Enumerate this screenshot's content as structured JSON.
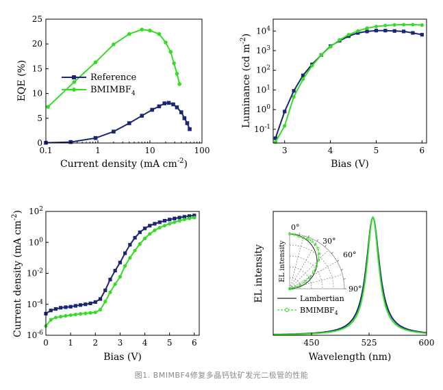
{
  "caption": "图1. BMIMBF4修复多晶钙钛矿发光二极管的性能",
  "colors": {
    "reference": "#1a2575",
    "bmimbf4": "#33dd22"
  },
  "chart_data": [
    {
      "type": "line",
      "xlabel_main": "Current density (mA cm",
      "xlabel_sup": "-2",
      "xlabel_end": ")",
      "ylabel": "EQE (%)",
      "xscale": "log",
      "xlim": [
        0.1,
        100
      ],
      "ylim": [
        0,
        25
      ],
      "xticks": [
        0.1,
        1,
        10,
        100
      ],
      "xtick_labels": [
        "0.1",
        "1",
        "10",
        "100"
      ],
      "yticks": [
        0,
        5,
        10,
        15,
        20,
        25
      ],
      "ytick_labels": [
        "0",
        "5",
        "10",
        "15",
        "20",
        "25"
      ],
      "legend": "center-left",
      "series": [
        {
          "name": "Reference",
          "sub": "",
          "marker": "square",
          "color": "#1a2575",
          "x": [
            0.1,
            0.3,
            0.9,
            2,
            4,
            7,
            11,
            15,
            19,
            23,
            28,
            33,
            40,
            46,
            52,
            58
          ],
          "y": [
            0.05,
            0.2,
            1.0,
            2.3,
            4.0,
            5.5,
            6.7,
            7.4,
            8.0,
            8.1,
            7.8,
            7.2,
            6.2,
            5.0,
            4.0,
            2.8
          ]
        },
        {
          "name": "BMIMBF",
          "sub": "4",
          "marker": "circle",
          "color": "#33dd22",
          "x": [
            0.11,
            0.35,
            0.9,
            2,
            4,
            7,
            10,
            15,
            20,
            25,
            29,
            33,
            37
          ],
          "y": [
            7.3,
            12.3,
            16.3,
            19.9,
            22.0,
            22.9,
            22.7,
            22.0,
            20.3,
            18.4,
            16.1,
            14.0,
            11.9
          ]
        }
      ]
    },
    {
      "type": "line",
      "xlabel": "Bias (V)",
      "ylabel_main": "Luminance (cd m",
      "ylabel_sup": "-2",
      "ylabel_end": ")",
      "yscale": "log",
      "xlim": [
        2.75,
        6.1
      ],
      "ylim": [
        0.02,
        40000
      ],
      "xticks": [
        3,
        4,
        5,
        6
      ],
      "xtick_labels": [
        "3",
        "4",
        "5",
        "6"
      ],
      "yticks": [
        0.1,
        1,
        10,
        100,
        1000,
        10000
      ],
      "ytick_base": "10",
      "ytick_exps": [
        "-1",
        "0",
        "1",
        "2",
        "3",
        "4"
      ],
      "series": [
        {
          "name": "Reference",
          "marker": "square",
          "color": "#1a2575",
          "x": [
            2.8,
            3.0,
            3.2,
            3.4,
            3.6,
            3.8,
            4.0,
            4.2,
            4.4,
            4.6,
            4.8,
            5.0,
            5.2,
            5.4,
            5.6,
            5.8,
            6.0
          ],
          "y": [
            0.035,
            0.8,
            9,
            55,
            200,
            600,
            1700,
            3200,
            5500,
            8000,
            9500,
            10500,
            10500,
            10000,
            9500,
            8000,
            6500
          ]
        },
        {
          "name": "BMIMBF4",
          "marker": "circle",
          "color": "#33dd22",
          "x": [
            2.8,
            3.0,
            3.2,
            3.4,
            3.6,
            3.8,
            4.0,
            4.2,
            4.4,
            4.6,
            4.8,
            5.0,
            5.2,
            5.4,
            5.6,
            5.8,
            6.0
          ],
          "y": [
            0.022,
            0.15,
            4.5,
            35,
            170,
            600,
            1600,
            3500,
            6500,
            10000,
            14000,
            17000,
            19000,
            20500,
            21000,
            21000,
            20000
          ]
        }
      ]
    },
    {
      "type": "line",
      "xlabel": "Bias (V)",
      "ylabel_main": "Current density (mA cm",
      "ylabel_sup": "-2",
      "ylabel_end": ")",
      "yscale": "log",
      "xlim": [
        0,
        6.2
      ],
      "ylim": [
        1e-06,
        100
      ],
      "xticks": [
        0,
        1,
        2,
        3,
        4,
        5,
        6
      ],
      "xtick_labels": [
        "0",
        "1",
        "2",
        "3",
        "4",
        "5",
        "6"
      ],
      "yticks": [
        1e-06,
        0.0001,
        0.01,
        1,
        100
      ],
      "ytick_base": "10",
      "ytick_exps": [
        "-6",
        "-4",
        "-2",
        "0",
        "2"
      ],
      "series": [
        {
          "name": "Reference",
          "marker": "square",
          "color": "#1a2575",
          "x": [
            0,
            0.2,
            0.4,
            0.6,
            0.8,
            1.0,
            1.2,
            1.4,
            1.6,
            1.8,
            2.0,
            2.2,
            2.4,
            2.6,
            2.8,
            3.0,
            3.2,
            3.4,
            3.6,
            3.8,
            4.0,
            4.2,
            4.4,
            4.6,
            4.8,
            5.0,
            5.2,
            5.4,
            5.6,
            5.8,
            6.0
          ],
          "y": [
            2.5e-05,
            4e-05,
            5e-05,
            6e-05,
            6.5e-05,
            7e-05,
            8e-05,
            9e-05,
            0.0001,
            0.000115,
            0.00014,
            0.00022,
            0.0008,
            0.004,
            0.015,
            0.05,
            0.2,
            0.7,
            2.0,
            4.5,
            8,
            12,
            16,
            20,
            25,
            30,
            35,
            40,
            45,
            50,
            55
          ]
        },
        {
          "name": "BMIMBF4",
          "marker": "circle",
          "color": "#33dd22",
          "x": [
            0,
            0.2,
            0.4,
            0.6,
            0.8,
            1.0,
            1.2,
            1.4,
            1.6,
            1.8,
            2.0,
            2.2,
            2.4,
            2.6,
            2.8,
            3.0,
            3.2,
            3.4,
            3.6,
            3.8,
            4.0,
            4.2,
            4.4,
            4.6,
            4.8,
            5.0,
            5.2,
            5.4,
            5.6,
            5.8,
            6.0
          ],
          "y": [
            4e-06,
            1e-05,
            1.4e-05,
            1.6e-05,
            1.8e-05,
            2e-05,
            2.2e-05,
            2.4e-05,
            2.6e-05,
            2.8e-05,
            3e-05,
            4.5e-05,
            0.00015,
            0.0006,
            0.002,
            0.006,
            0.03,
            0.1,
            0.3,
            0.8,
            1.8,
            3.5,
            6,
            9,
            12,
            16,
            20,
            25,
            30,
            35,
            40
          ]
        }
      ]
    },
    {
      "type": "line",
      "xlabel": "Wavelength (nm)",
      "ylabel": "EL intensity",
      "xlim": [
        400,
        600
      ],
      "ylim": [
        0,
        1.05
      ],
      "xticks": [
        450,
        525,
        600
      ],
      "xtick_labels": [
        "450",
        "525",
        "600"
      ],
      "series": [
        {
          "name": "Reference",
          "color": "#1a2575",
          "peak": 530,
          "fwhm": 21
        },
        {
          "name": "BMIMBF4",
          "color": "#33dd22",
          "peak": 530,
          "fwhm": 19
        }
      ],
      "inset": {
        "type": "polar",
        "angle_labels": [
          "0°",
          "30°",
          "60°",
          "90°"
        ],
        "ylabel": "EL intensity",
        "legend": [
          {
            "name": "Lambertian",
            "sub": "",
            "style": "solid",
            "color": "#222222"
          },
          {
            "name": "BMIMBF",
            "sub": "4",
            "style": "dashed-circle",
            "color": "#33dd22"
          }
        ],
        "angles_deg": [
          0,
          5,
          10,
          15,
          20,
          25,
          30,
          35,
          40,
          45,
          50,
          55,
          60,
          65,
          70,
          75,
          80,
          85,
          90
        ],
        "radius": [
          1.0,
          1.0,
          0.99,
          1.0,
          1.03,
          1.06,
          1.08,
          1.1,
          1.09,
          1.05,
          1.0,
          0.93,
          0.84,
          0.74,
          0.6,
          0.45,
          0.3,
          0.15,
          0.02
        ]
      }
    }
  ]
}
